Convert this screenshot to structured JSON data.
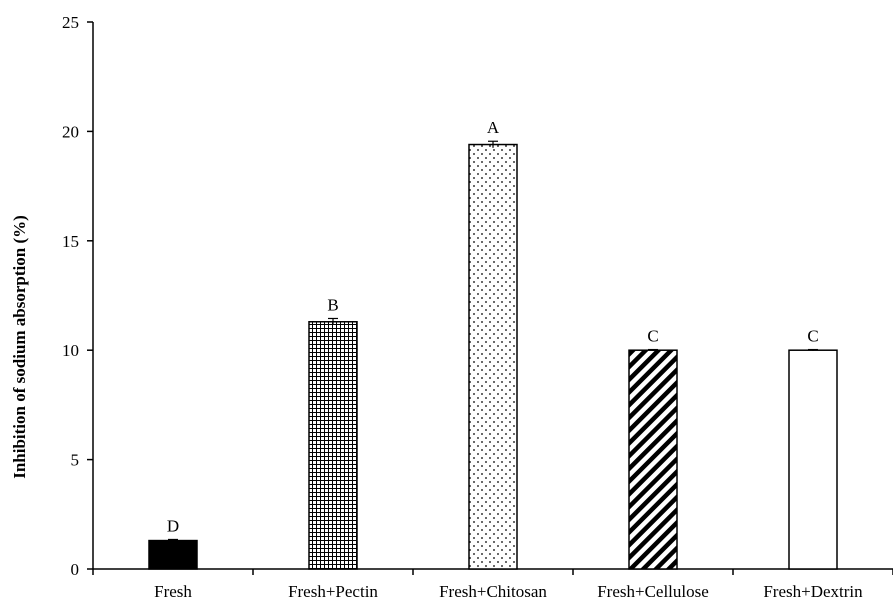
{
  "chart_data": {
    "type": "bar",
    "title": "",
    "xlabel": "",
    "ylabel": "Inhibition of sodium absorption (%)",
    "ylim": [
      0,
      25
    ],
    "yticks": [
      0,
      5,
      10,
      15,
      20,
      25
    ],
    "grid": false,
    "legend": "none",
    "categories": [
      "Fresh",
      "Fresh+Pectin",
      "Fresh+Chitosan",
      "Fresh+Cellulose",
      "Fresh+Dextrin"
    ],
    "values": [
      1.3,
      11.3,
      19.4,
      10.0,
      10.0
    ],
    "errors": [
      0.05,
      0.15,
      0.15,
      0.03,
      0.03
    ],
    "significance_labels": [
      "D",
      "B",
      "A",
      "C",
      "C"
    ],
    "bar_patterns": [
      "solid-black",
      "grid",
      "dots",
      "diagonal-hatch",
      "white"
    ]
  }
}
